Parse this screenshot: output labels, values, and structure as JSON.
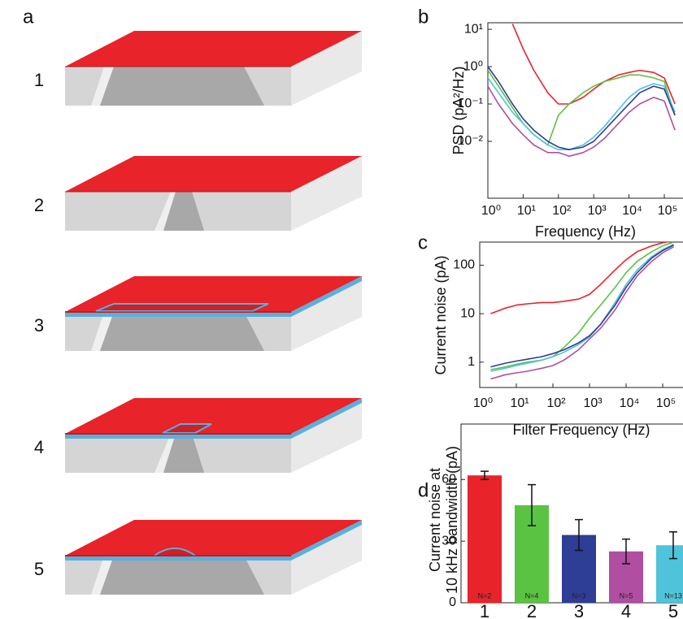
{
  "panel_a": {
    "label": "a",
    "items": [
      "1",
      "2",
      "3",
      "4",
      "5"
    ],
    "colors": [
      "#e8232a",
      "#5ac341",
      "#2e3d96",
      "#b04ea2",
      "#4fc3d9"
    ]
  },
  "chart_data": [
    {
      "type": "line",
      "label": "b",
      "x_label": "Frequency (Hz)",
      "y_label": "PSD (pA²/Hz)",
      "log_x": true,
      "log_y": true,
      "x": [
        1,
        2,
        5,
        10,
        20,
        50,
        100,
        200,
        500,
        1000,
        2000,
        5000,
        10000,
        20000,
        50000,
        100000,
        200000
      ],
      "xlim": [
        1,
        300000
      ],
      "ylim": [
        0.0003,
        15
      ],
      "xticks": [
        {
          "value": 1,
          "label": "10⁰"
        },
        {
          "value": 10,
          "label": "10¹"
        },
        {
          "value": 100,
          "label": "10²"
        },
        {
          "value": 1000,
          "label": "10³"
        },
        {
          "value": 10000,
          "label": "10⁴"
        },
        {
          "value": 100000,
          "label": "10⁵"
        }
      ],
      "yticks": [
        {
          "value": 10,
          "label": "10¹"
        },
        {
          "value": 1,
          "label": "10⁰"
        },
        {
          "value": 0.1,
          "label": "10⁻¹"
        },
        {
          "value": 0.01,
          "label": "10⁻²"
        }
      ],
      "series": [
        {
          "color": "#e8232a",
          "values": [
            null,
            null,
            14,
            3,
            0.8,
            0.2,
            0.1,
            0.1,
            0.15,
            0.25,
            0.4,
            0.6,
            0.7,
            0.8,
            0.7,
            0.5,
            0.1
          ]
        },
        {
          "color": "#5ac341",
          "values": [
            0.8,
            0.3,
            0.08,
            0.03,
            0.015,
            0.008,
            0.05,
            0.1,
            0.2,
            0.3,
            0.4,
            0.5,
            0.6,
            0.6,
            0.5,
            0.4,
            0.05
          ]
        },
        {
          "color": "#4fc3d9",
          "values": [
            0.5,
            0.2,
            0.06,
            0.03,
            0.015,
            0.008,
            0.006,
            0.006,
            0.008,
            0.013,
            0.025,
            0.07,
            0.15,
            0.25,
            0.35,
            0.3,
            0.06
          ]
        },
        {
          "color": "#2e3d96",
          "values": [
            1.0,
            0.4,
            0.1,
            0.04,
            0.02,
            0.01,
            0.007,
            0.006,
            0.007,
            0.01,
            0.02,
            0.05,
            0.1,
            0.2,
            0.3,
            0.25,
            0.05
          ]
        },
        {
          "color": "#b04ea2",
          "values": [
            0.3,
            0.1,
            0.03,
            0.015,
            0.008,
            0.005,
            0.005,
            0.004,
            0.005,
            0.007,
            0.012,
            0.03,
            0.06,
            0.1,
            0.15,
            0.12,
            0.02
          ]
        }
      ]
    },
    {
      "type": "line",
      "label": "c",
      "x_label": "Filter Frequency (Hz)",
      "y_label": "Current noise (pA)",
      "log_x": true,
      "log_y": true,
      "x": [
        2,
        5,
        10,
        20,
        50,
        100,
        200,
        500,
        1000,
        2000,
        5000,
        10000,
        20000,
        50000,
        100000,
        200000
      ],
      "xlim": [
        1,
        300000
      ],
      "ylim": [
        0.3,
        300
      ],
      "xticks": [
        {
          "value": 1,
          "label": "10⁰"
        },
        {
          "value": 10,
          "label": "10¹"
        },
        {
          "value": 100,
          "label": "10²"
        },
        {
          "value": 1000,
          "label": "10³"
        },
        {
          "value": 10000,
          "label": "10⁴"
        },
        {
          "value": 100000,
          "label": "10⁵"
        }
      ],
      "yticks": [
        100,
        10,
        1
      ],
      "series": [
        {
          "color": "#e8232a",
          "values": [
            10,
            13,
            15,
            16,
            17,
            17,
            18,
            20,
            25,
            40,
            80,
            130,
            190,
            250,
            290,
            320
          ]
        },
        {
          "color": "#5ac341",
          "values": [
            0.7,
            0.8,
            0.9,
            1.0,
            1.1,
            1.3,
            2,
            4,
            8,
            15,
            35,
            70,
            120,
            190,
            250,
            300
          ]
        },
        {
          "color": "#4fc3d9",
          "values": [
            0.65,
            0.75,
            0.85,
            0.95,
            1.1,
            1.3,
            1.6,
            2.3,
            3.3,
            6,
            17,
            40,
            80,
            150,
            210,
            270
          ]
        },
        {
          "color": "#2e3d96",
          "values": [
            0.8,
            0.95,
            1.05,
            1.15,
            1.3,
            1.5,
            1.8,
            2.5,
            3.5,
            6,
            15,
            35,
            70,
            140,
            200,
            260
          ]
        },
        {
          "color": "#b04ea2",
          "values": [
            0.45,
            0.55,
            0.6,
            0.65,
            0.75,
            0.85,
            1.1,
            1.8,
            3,
            5,
            12,
            28,
            60,
            120,
            180,
            240
          ]
        }
      ]
    },
    {
      "type": "bar",
      "label": "d",
      "y_label": [
        "Current noise at",
        "10 kHz bandwidth (pA)"
      ],
      "categories": [
        "1",
        "2",
        "3",
        "4",
        "5"
      ],
      "values": [
        62,
        47.5,
        33,
        25,
        28
      ],
      "errors": [
        2,
        10,
        7.5,
        6,
        6.5
      ],
      "n_labels": [
        "N=2",
        "N=4",
        "N=3",
        "N=5",
        "N=13"
      ],
      "colors": [
        "#e8232a",
        "#5ac341",
        "#2e3d96",
        "#b04ea2",
        "#4fc3d9"
      ],
      "ylim": [
        0,
        87
      ],
      "yticks": [
        0,
        30,
        60
      ]
    }
  ]
}
